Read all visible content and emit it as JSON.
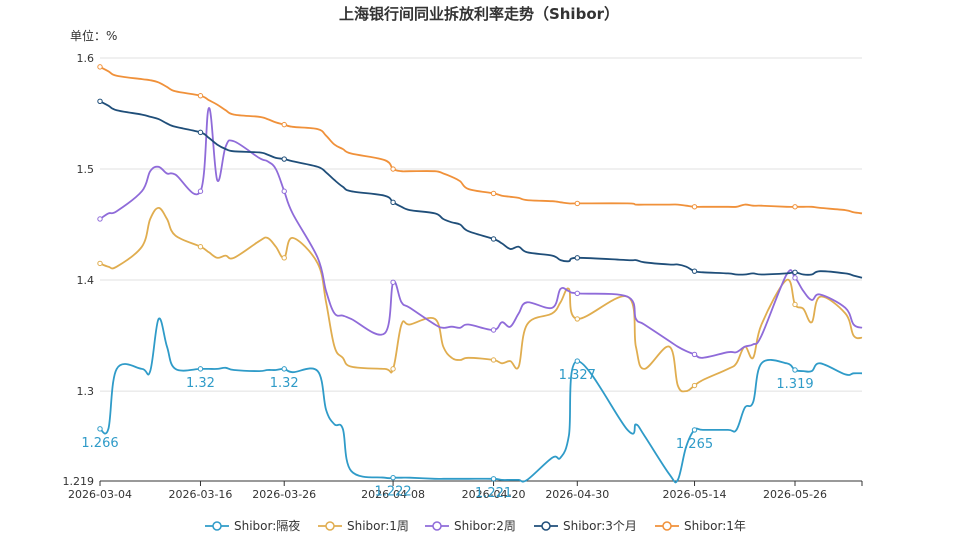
{
  "chart_data": {
    "type": "line",
    "title": "上海银行间同业拆放利率走势（Shibor）",
    "unit_label": "单位：%",
    "ylim": [
      1.219,
      1.6
    ],
    "y_ticks": [
      {
        "value": 1.219,
        "label": "1.219"
      },
      {
        "value": 1.3,
        "label": "1.3"
      },
      {
        "value": 1.4,
        "label": "1.4"
      },
      {
        "value": 1.5,
        "label": "1.5"
      },
      {
        "value": 1.6,
        "label": "1.6"
      }
    ],
    "x_ticks": [
      "2026-03-04",
      "2026-03-16",
      "2026-03-26",
      "2026-04-08",
      "2026-04-20",
      "2026-04-30",
      "2026-05-14",
      "2026-05-26"
    ],
    "x": [
      "2026-03-04",
      "2026-03-05",
      "2026-03-06",
      "2026-03-09",
      "2026-03-10",
      "2026-03-11",
      "2026-03-12",
      "2026-03-13",
      "2026-03-16",
      "2026-03-17",
      "2026-03-18",
      "2026-03-19",
      "2026-03-20",
      "2026-03-23",
      "2026-03-24",
      "2026-03-25",
      "2026-03-26",
      "2026-03-27",
      "2026-03-30",
      "2026-03-31",
      "2026-04-01",
      "2026-04-02",
      "2026-04-03",
      "2026-04-07",
      "2026-04-08",
      "2026-04-09",
      "2026-04-10",
      "2026-04-13",
      "2026-04-14",
      "2026-04-15",
      "2026-04-16",
      "2026-04-17",
      "2026-04-20",
      "2026-04-21",
      "2026-04-22",
      "2026-04-23",
      "2026-04-24",
      "2026-04-27",
      "2026-04-28",
      "2026-04-29",
      "2026-04-30",
      "2026-05-06",
      "2026-05-07",
      "2026-05-08",
      "2026-05-11",
      "2026-05-12",
      "2026-05-13",
      "2026-05-14",
      "2026-05-15",
      "2026-05-18",
      "2026-05-19",
      "2026-05-20",
      "2026-05-21",
      "2026-05-22",
      "2026-05-25",
      "2026-05-26",
      "2026-05-27",
      "2026-05-28",
      "2026-05-29",
      "2026-06-01",
      "2026-06-02",
      "2026-06-03"
    ],
    "series": [
      {
        "name": "Shibor:隔夜",
        "color": "#2f9bc8",
        "values": [
          1.266,
          1.266,
          1.32,
          1.32,
          1.318,
          1.365,
          1.34,
          1.32,
          1.32,
          1.32,
          1.32,
          1.321,
          1.319,
          1.318,
          1.319,
          1.319,
          1.32,
          1.317,
          1.318,
          1.283,
          1.27,
          1.266,
          1.228,
          1.222,
          1.222,
          1.222,
          1.222,
          1.221,
          1.221,
          1.221,
          1.221,
          1.221,
          1.221,
          1.22,
          1.22,
          1.22,
          1.22,
          1.24,
          1.24,
          1.26,
          1.327,
          1.265,
          1.27,
          1.26,
          1.225,
          1.22,
          1.25,
          1.265,
          1.265,
          1.265,
          1.265,
          1.285,
          1.29,
          1.325,
          1.325,
          1.319,
          1.318,
          1.318,
          1.325,
          1.315,
          1.316,
          1.316
        ],
        "labels": [
          {
            "i": 0,
            "text": "1.266"
          },
          {
            "i": 8,
            "text": "1.32"
          },
          {
            "i": 16,
            "text": "1.32"
          },
          {
            "i": 24,
            "text": "1.222"
          },
          {
            "i": 32,
            "text": "1.221"
          },
          {
            "i": 40,
            "text": "1.327"
          },
          {
            "i": 47,
            "text": "1.265"
          },
          {
            "i": 55,
            "text": "1.319"
          }
        ]
      },
      {
        "name": "Shibor:1周",
        "color": "#e0ad4f",
        "values": [
          1.415,
          1.412,
          1.412,
          1.43,
          1.455,
          1.465,
          1.455,
          1.44,
          1.43,
          1.425,
          1.42,
          1.422,
          1.42,
          1.435,
          1.438,
          1.43,
          1.42,
          1.438,
          1.415,
          1.38,
          1.34,
          1.33,
          1.322,
          1.32,
          1.32,
          1.36,
          1.36,
          1.365,
          1.34,
          1.33,
          1.328,
          1.33,
          1.328,
          1.325,
          1.327,
          1.322,
          1.36,
          1.37,
          1.38,
          1.392,
          1.365,
          1.385,
          1.34,
          1.32,
          1.34,
          1.305,
          1.3,
          1.305,
          1.31,
          1.32,
          1.325,
          1.34,
          1.33,
          1.36,
          1.4,
          1.378,
          1.374,
          1.362,
          1.385,
          1.37,
          1.35,
          1.348
        ]
      },
      {
        "name": "Shibor:2周",
        "color": "#8f6bd9",
        "values": [
          1.455,
          1.46,
          1.462,
          1.48,
          1.498,
          1.502,
          1.496,
          1.495,
          1.48,
          1.555,
          1.49,
          1.52,
          1.525,
          1.51,
          1.507,
          1.5,
          1.48,
          1.46,
          1.42,
          1.39,
          1.37,
          1.368,
          1.365,
          1.352,
          1.398,
          1.38,
          1.375,
          1.36,
          1.357,
          1.358,
          1.357,
          1.36,
          1.355,
          1.362,
          1.358,
          1.37,
          1.38,
          1.375,
          1.392,
          1.39,
          1.388,
          1.385,
          1.365,
          1.36,
          1.345,
          1.34,
          1.336,
          1.333,
          1.33,
          1.335,
          1.335,
          1.34,
          1.342,
          1.35,
          1.405,
          1.402,
          1.39,
          1.382,
          1.387,
          1.375,
          1.36,
          1.357
        ]
      },
      {
        "name": "Shibor:3个月",
        "color": "#1f4e79",
        "values": [
          1.561,
          1.557,
          1.553,
          1.549,
          1.547,
          1.545,
          1.541,
          1.538,
          1.533,
          1.528,
          1.522,
          1.518,
          1.516,
          1.515,
          1.513,
          1.51,
          1.509,
          1.507,
          1.502,
          1.497,
          1.49,
          1.484,
          1.48,
          1.476,
          1.47,
          1.466,
          1.463,
          1.46,
          1.455,
          1.452,
          1.45,
          1.444,
          1.437,
          1.433,
          1.428,
          1.43,
          1.425,
          1.422,
          1.418,
          1.417,
          1.42,
          1.418,
          1.418,
          1.416,
          1.414,
          1.414,
          1.412,
          1.408,
          1.407,
          1.406,
          1.405,
          1.405,
          1.406,
          1.405,
          1.406,
          1.407,
          1.405,
          1.405,
          1.408,
          1.406,
          1.404,
          1.402
        ]
      },
      {
        "name": "Shibor:1年",
        "color": "#f0913a",
        "values": [
          1.592,
          1.588,
          1.584,
          1.581,
          1.58,
          1.578,
          1.574,
          1.57,
          1.566,
          1.562,
          1.558,
          1.553,
          1.549,
          1.547,
          1.545,
          1.542,
          1.54,
          1.538,
          1.536,
          1.53,
          1.522,
          1.518,
          1.514,
          1.508,
          1.5,
          1.498,
          1.498,
          1.498,
          1.496,
          1.493,
          1.489,
          1.482,
          1.478,
          1.476,
          1.475,
          1.474,
          1.472,
          1.471,
          1.47,
          1.469,
          1.469,
          1.469,
          1.468,
          1.468,
          1.468,
          1.468,
          1.467,
          1.466,
          1.466,
          1.466,
          1.466,
          1.468,
          1.467,
          1.467,
          1.466,
          1.466,
          1.466,
          1.466,
          1.465,
          1.463,
          1.461,
          1.46
        ]
      }
    ],
    "legend_position": "bottom",
    "grid": "horizontal"
  }
}
